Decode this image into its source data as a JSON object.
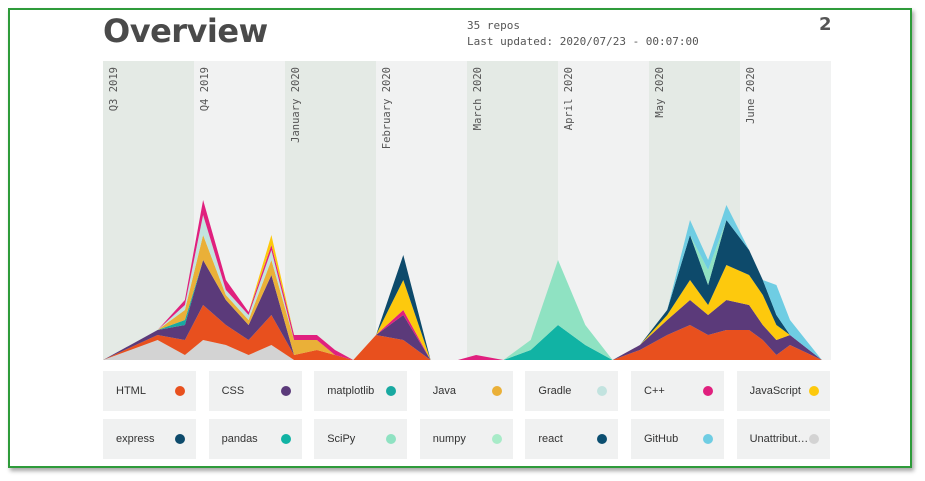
{
  "header": {
    "title": "Overview",
    "repos": "35 repos",
    "updated": "Last updated: 2020/07/23 - 00:07:00",
    "page_number": "2"
  },
  "chart_data": {
    "type": "area",
    "periods": [
      "Q3 2019",
      "Q4 2019",
      "January 2020",
      "February 2020",
      "March 2020",
      "April 2020",
      "May 2020",
      "June 2020"
    ],
    "x": [
      0,
      0.6,
      0.9,
      1.1,
      1.35,
      1.6,
      1.85,
      2.1,
      2.35,
      2.55,
      2.75,
      3.0,
      3.3,
      3.6,
      3.9,
      4.1,
      4.4,
      4.7,
      5.0,
      5.3,
      5.6,
      5.9,
      6.2,
      6.45,
      6.65,
      6.85,
      7.1,
      7.25,
      7.4,
      7.55,
      7.9
    ],
    "series": [
      {
        "name": "Unattributed",
        "color": "#d3d3d3",
        "values": [
          0,
          2.0,
          0.5,
          2.0,
          1.5,
          0.5,
          1.5,
          0,
          0,
          0,
          0,
          0,
          0,
          0,
          0,
          0,
          0,
          0,
          0,
          0,
          0,
          0,
          0,
          0,
          0,
          0,
          0,
          0,
          0,
          0,
          0
        ]
      },
      {
        "name": "HTML",
        "color": "#e8501e",
        "values": [
          0,
          0.5,
          1.5,
          3.5,
          2.0,
          1.5,
          3.0,
          0.5,
          1.0,
          0.5,
          0,
          2.5,
          2.0,
          0,
          0,
          0,
          0,
          0,
          0,
          0,
          0,
          1.0,
          2.5,
          3.5,
          2.5,
          3.0,
          3.0,
          2.0,
          0.5,
          1.5,
          0
        ]
      },
      {
        "name": "CSS",
        "color": "#5b3a7a",
        "values": [
          0,
          0.5,
          1.5,
          4.5,
          2.5,
          1.5,
          4.0,
          0,
          0,
          0,
          0,
          0,
          2.5,
          0,
          0,
          0,
          0,
          0,
          0,
          0,
          0,
          0.5,
          1.5,
          2.5,
          2.0,
          3.0,
          2.5,
          1.5,
          1.5,
          1.0,
          0
        ]
      },
      {
        "name": "matplotlib",
        "color": "#19a9a1",
        "values": [
          0,
          0,
          0.5,
          0,
          0,
          0,
          0,
          0,
          0,
          0,
          0,
          0,
          0,
          0,
          0,
          0,
          0,
          0,
          0,
          0,
          0,
          0,
          0,
          0,
          0,
          0,
          0,
          0,
          0,
          0,
          0
        ]
      },
      {
        "name": "Java",
        "color": "#eab038",
        "values": [
          0,
          0,
          1.0,
          2.5,
          0.5,
          0.5,
          1.5,
          1.5,
          1.0,
          0,
          0,
          0,
          0,
          0,
          0,
          0,
          0,
          0,
          0,
          0,
          0,
          0,
          0,
          0,
          0,
          0,
          0,
          0,
          0,
          0,
          0
        ]
      },
      {
        "name": "Gradle",
        "color": "#c2e3df",
        "values": [
          0,
          0,
          0.5,
          2.0,
          0.5,
          0.5,
          1.0,
          0,
          0,
          0,
          0,
          0,
          0,
          0,
          0,
          0,
          0,
          0,
          0,
          0,
          0,
          0,
          0,
          0,
          0,
          0,
          0,
          0,
          0,
          0,
          0
        ]
      },
      {
        "name": "C++",
        "color": "#e0207e",
        "values": [
          0,
          0,
          0.5,
          1.5,
          1.0,
          0.3,
          0.5,
          0.5,
          0.5,
          0.5,
          0,
          0,
          0.5,
          0,
          0,
          0.5,
          0,
          0,
          0,
          0,
          0,
          0,
          0,
          0,
          0,
          0,
          0,
          0,
          0,
          0,
          0
        ]
      },
      {
        "name": "JavaScript",
        "color": "#fdc90d",
        "values": [
          0,
          0,
          0,
          0,
          0,
          0,
          1.0,
          0,
          0,
          0,
          0,
          0,
          3.0,
          0,
          0,
          0,
          0,
          0,
          0,
          0,
          0,
          0,
          0.5,
          2.0,
          1.0,
          3.5,
          3.0,
          3.0,
          1.5,
          0,
          0
        ]
      },
      {
        "name": "express",
        "color": "#0d4a6b",
        "values": [
          0,
          0,
          0,
          0,
          0,
          0,
          0,
          0,
          0,
          0,
          0,
          0,
          2.5,
          0,
          0,
          0,
          0,
          0,
          0,
          0,
          0,
          0,
          0.5,
          4.5,
          2.0,
          4.5,
          2.5,
          1.5,
          1.0,
          0,
          0
        ]
      },
      {
        "name": "pandas",
        "color": "#11b3a4",
        "values": [
          0,
          0,
          0,
          0,
          0,
          0,
          0,
          0,
          0,
          0,
          0,
          0,
          0,
          0,
          0,
          0,
          0,
          1.0,
          3.5,
          1.5,
          0,
          0,
          0,
          0,
          0,
          0,
          0,
          0,
          0,
          0,
          0
        ]
      },
      {
        "name": "SciPy",
        "color": "#8fe2c2",
        "values": [
          0,
          0,
          0,
          0,
          0,
          0,
          0,
          0,
          0,
          0,
          0,
          0,
          0,
          0,
          0,
          0,
          0,
          1.0,
          6.5,
          2.0,
          0,
          0,
          0,
          0,
          1.5,
          0,
          0,
          0,
          0,
          0,
          0
        ]
      },
      {
        "name": "numpy",
        "color": "#a8ebc8",
        "values": [
          0,
          0,
          0,
          0,
          0,
          0,
          0,
          0,
          0,
          0,
          0,
          0,
          0,
          0,
          0,
          0,
          0,
          0,
          0,
          0,
          0,
          0,
          0,
          0,
          0,
          0,
          0,
          0,
          0,
          0,
          0
        ]
      },
      {
        "name": "react",
        "color": "#0b4e70",
        "values": [
          0,
          0,
          0,
          0,
          0,
          0,
          0,
          0,
          0,
          0,
          0,
          0,
          0,
          0,
          0,
          0,
          0,
          0,
          0,
          0,
          0,
          0,
          0,
          0,
          0,
          0,
          0,
          0,
          0,
          0,
          0
        ]
      },
      {
        "name": "GitHub",
        "color": "#6fcde3",
        "values": [
          0,
          0,
          0,
          0,
          0,
          0,
          0,
          0,
          0,
          0,
          0,
          0,
          0,
          0,
          0,
          0,
          0,
          0,
          0,
          0,
          0,
          0,
          0,
          1.5,
          1.0,
          1.5,
          0,
          0,
          3.0,
          1.5,
          0
        ]
      }
    ]
  },
  "legend": [
    {
      "label": "HTML",
      "color": "#e8501e"
    },
    {
      "label": "CSS",
      "color": "#5b3a7a"
    },
    {
      "label": "matplotlib",
      "color": "#19a9a1"
    },
    {
      "label": "Java",
      "color": "#eab038"
    },
    {
      "label": "Gradle",
      "color": "#c2e3df"
    },
    {
      "label": "C++",
      "color": "#e0207e"
    },
    {
      "label": "JavaScript",
      "color": "#fdc90d"
    },
    {
      "label": "express",
      "color": "#0d4a6b"
    },
    {
      "label": "pandas",
      "color": "#11b3a4"
    },
    {
      "label": "SciPy",
      "color": "#8fe2c2"
    },
    {
      "label": "numpy",
      "color": "#a8ebc8"
    },
    {
      "label": "react",
      "color": "#0b4e70"
    },
    {
      "label": "GitHub",
      "color": "#6fcde3"
    },
    {
      "label": "Unattribut…",
      "color": "#d3d3d3"
    }
  ]
}
